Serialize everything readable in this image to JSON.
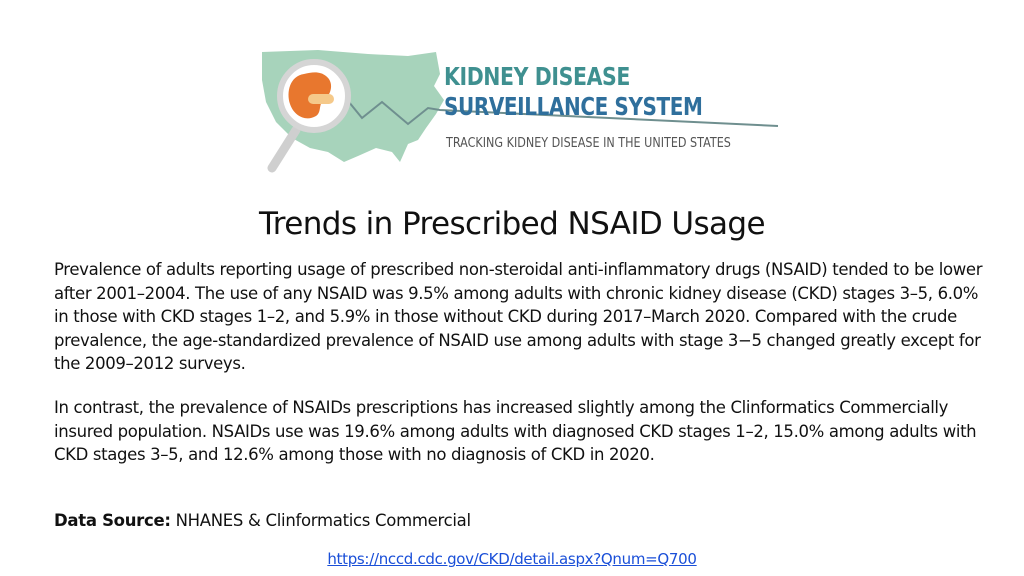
{
  "logo": {
    "line1": "KIDNEY DISEASE",
    "line2": "SURVEILLANCE SYSTEM",
    "tagline": "TRACKING KIDNEY DISEASE IN THE UNITED STATES",
    "colors": {
      "map": "#a7d3bb",
      "kidney": "#e8772e",
      "accent": "#3f9090",
      "navy": "#2f6f9c"
    }
  },
  "title": "Trends in Prescribed NSAID Usage",
  "paragraphs": [
    "Prevalence of adults reporting usage of prescribed non-steroidal anti-inflammatory drugs (NSAID) tended to be lower after 2001–2004. The use of any NSAID was 9.5% among adults with chronic kidney disease (CKD) stages 3–5, 6.0% in those with CKD stages 1–2, and 5.9% in those without CKD during 2017–March 2020. Compared with the crude prevalence, the age-standardized prevalence of NSAID use among adults with stage 3−5 changed greatly except for the 2009–2012 surveys.",
    "In contrast, the prevalence of NSAIDs prescriptions has increased slightly among the Clinformatics Commercially insured population. NSAIDs use was 19.6% among adults with diagnosed CKD stages 1–2, 15.0% among adults with CKD stages 3–5, and 12.6% among those with no diagnosis of CKD in 2020."
  ],
  "data_source": {
    "label": "Data Source:",
    "value": " NHANES & Clinformatics Commercial"
  },
  "link": "https://nccd.cdc.gov/CKD/detail.aspx?Qnum=Q700"
}
